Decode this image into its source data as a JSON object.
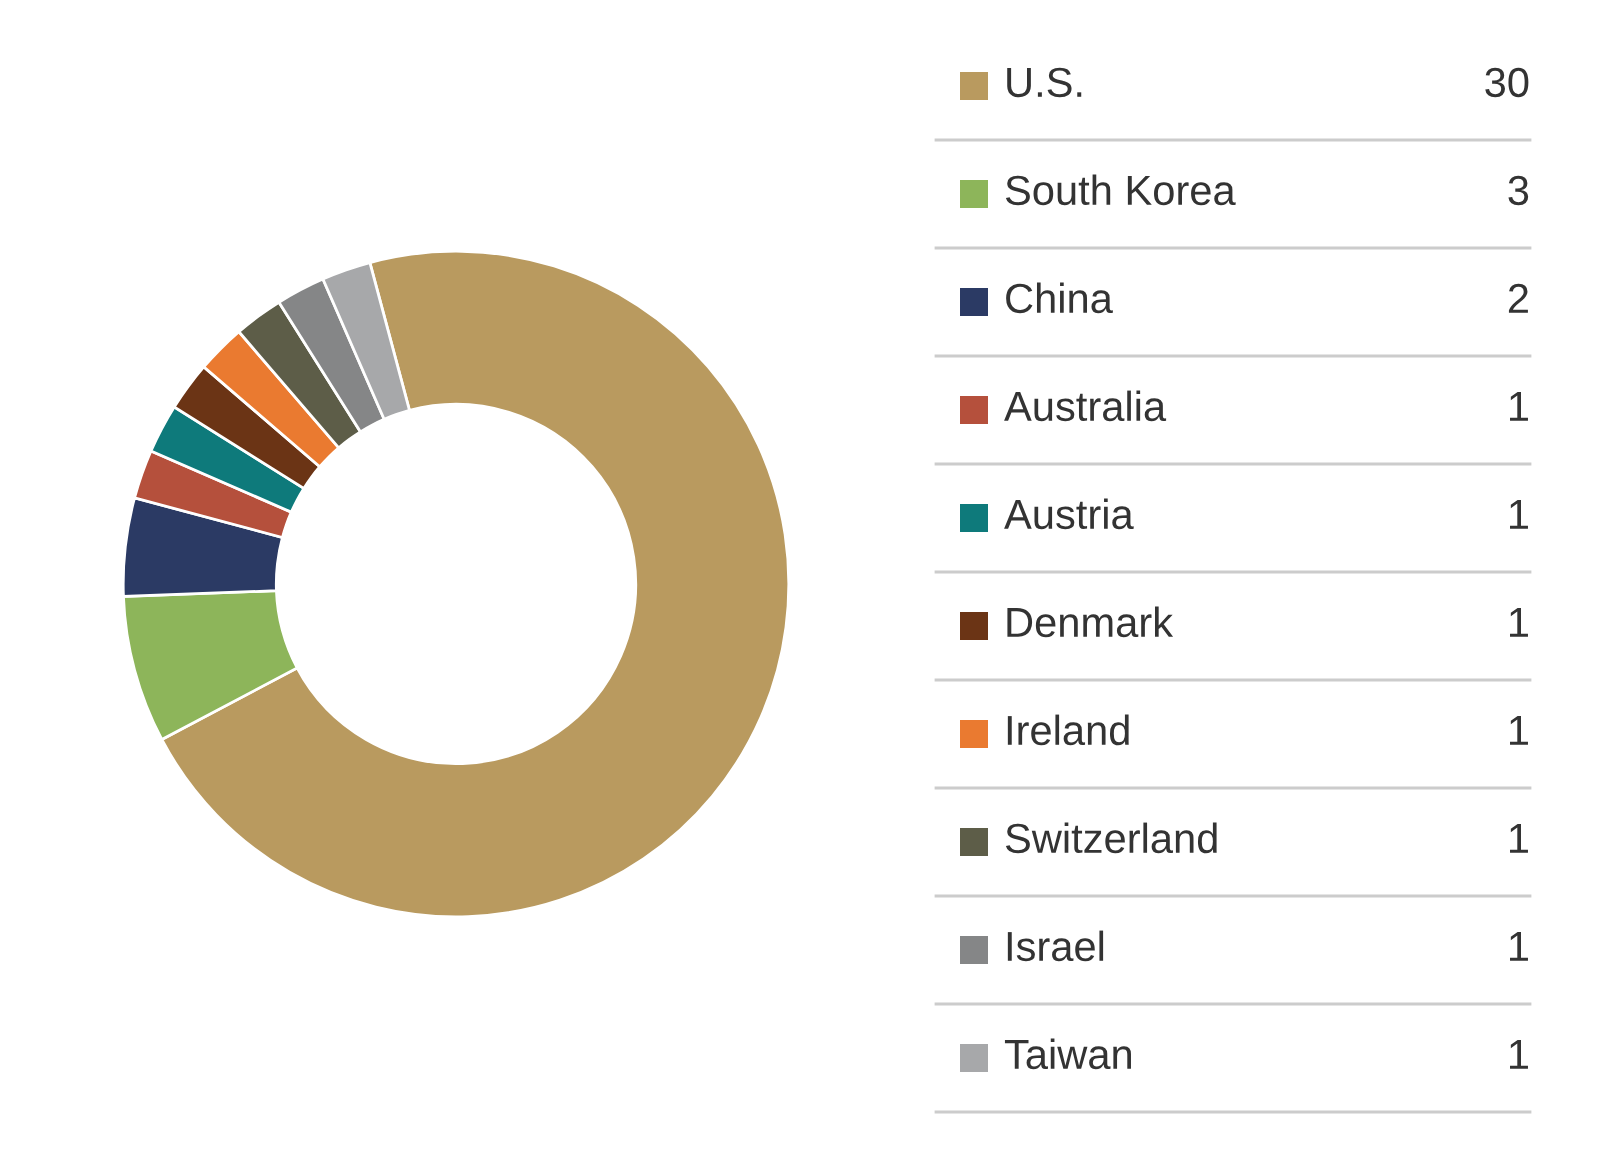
{
  "chart_data": {
    "type": "donut",
    "categories": [
      "U.S.",
      "South Korea",
      "China",
      "Australia",
      "Austria",
      "Denmark",
      "Ireland",
      "Switzerland",
      "Israel",
      "Taiwan"
    ],
    "values": [
      30,
      3,
      2,
      1,
      1,
      1,
      1,
      1,
      1,
      1
    ],
    "colors": [
      "#b99a5f",
      "#8db55a",
      "#2b3a64",
      "#b5503c",
      "#0e7a7b",
      "#6b3415",
      "#ea7a30",
      "#5d5d48",
      "#858687",
      "#a7a8aa"
    ],
    "data_labels": true,
    "legend": "right"
  }
}
